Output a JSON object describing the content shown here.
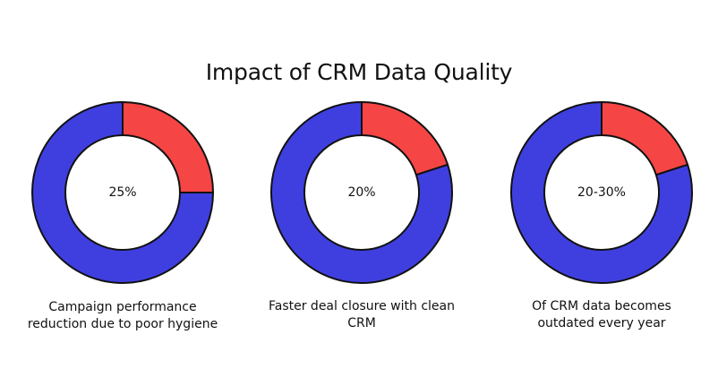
{
  "chart_data": {
    "type": "pie",
    "title": "Impact of CRM Data Quality",
    "colors": {
      "highlight": "#f64545",
      "remainder": "#3f3fe0",
      "outline": "#111111"
    },
    "donuts": [
      {
        "center_label": "25%",
        "caption": "Campaign performance reduction due to poor hygiene",
        "value": 25
      },
      {
        "center_label": "20%",
        "caption": "Faster deal closure with clean CRM",
        "value": 20
      },
      {
        "center_label": "20-30%",
        "caption": "Of CRM data becomes outdated every year",
        "value": 20
      }
    ]
  }
}
